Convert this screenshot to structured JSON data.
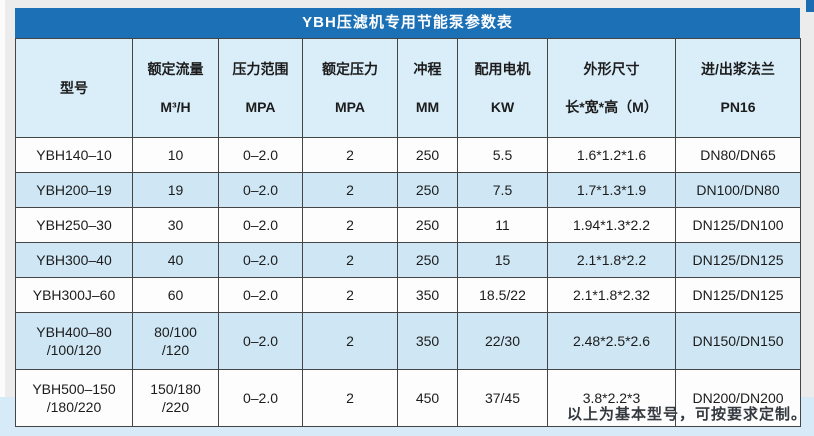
{
  "title": "YBH压滤机专用节能泵参数表",
  "table": {
    "columns": [
      {
        "l1": "型号",
        "l2": ""
      },
      {
        "l1": "额定流量",
        "l2": "M³/H"
      },
      {
        "l1": "压力范围",
        "l2": "MPA"
      },
      {
        "l1": "额定压力",
        "l2": "MPA"
      },
      {
        "l1": "冲程",
        "l2": "MM"
      },
      {
        "l1": "配用电机",
        "l2": "KW"
      },
      {
        "l1": "外形尺寸",
        "l2": "长*宽*高（M）"
      },
      {
        "l1": "进/出浆法兰",
        "l2": "PN16"
      }
    ],
    "rows": [
      {
        "model": "YBH140–10",
        "flow": "10",
        "range": "0–2.0",
        "pressure": "2",
        "stroke": "250",
        "motor": "5.5",
        "size": "1.6*1.2*1.6",
        "flange": "DN80/DN65"
      },
      {
        "model": "YBH200–19",
        "flow": "19",
        "range": "0–2.0",
        "pressure": "2",
        "stroke": "250",
        "motor": "7.5",
        "size": "1.7*1.3*1.9",
        "flange": "DN100/DN80"
      },
      {
        "model": "YBH250–30",
        "flow": "30",
        "range": "0–2.0",
        "pressure": "2",
        "stroke": "250",
        "motor": "11",
        "size": "1.94*1.3*2.2",
        "flange": "DN125/DN100"
      },
      {
        "model": "YBH300–40",
        "flow": "40",
        "range": "0–2.0",
        "pressure": "2",
        "stroke": "250",
        "motor": "15",
        "size": "2.1*1.8*2.2",
        "flange": "DN125/DN125"
      },
      {
        "model": "YBH300J–60",
        "flow": "60",
        "range": "0–2.0",
        "pressure": "2",
        "stroke": "350",
        "motor": "18.5/22",
        "size": "2.1*1.8*2.32",
        "flange": "DN125/DN125"
      },
      {
        "model": "YBH400–80\n/100/120",
        "flow": "80/100\n/120",
        "range": "0–2.0",
        "pressure": "2",
        "stroke": "350",
        "motor": "22/30",
        "size": "2.48*2.5*2.6",
        "flange": "DN150/DN150"
      },
      {
        "model": "YBH500–150\n/180/220",
        "flow": "150/180\n/220",
        "range": "0–2.0",
        "pressure": "2",
        "stroke": "450",
        "motor": "37/45",
        "size": "3.8*2.2*3",
        "flange": "DN200/DN200"
      }
    ]
  },
  "footer": {
    "note": "以上为基本型号，可按要求定制。"
  },
  "colors": {
    "title_bar": "#1b70b6",
    "header_row": "#daeef9",
    "alt_row": "#cfe7f5",
    "plain_row": "#fdfdfd",
    "page_bottom": "#d7eaf8",
    "page_gray": "#ebeceb",
    "border": "#454545"
  }
}
